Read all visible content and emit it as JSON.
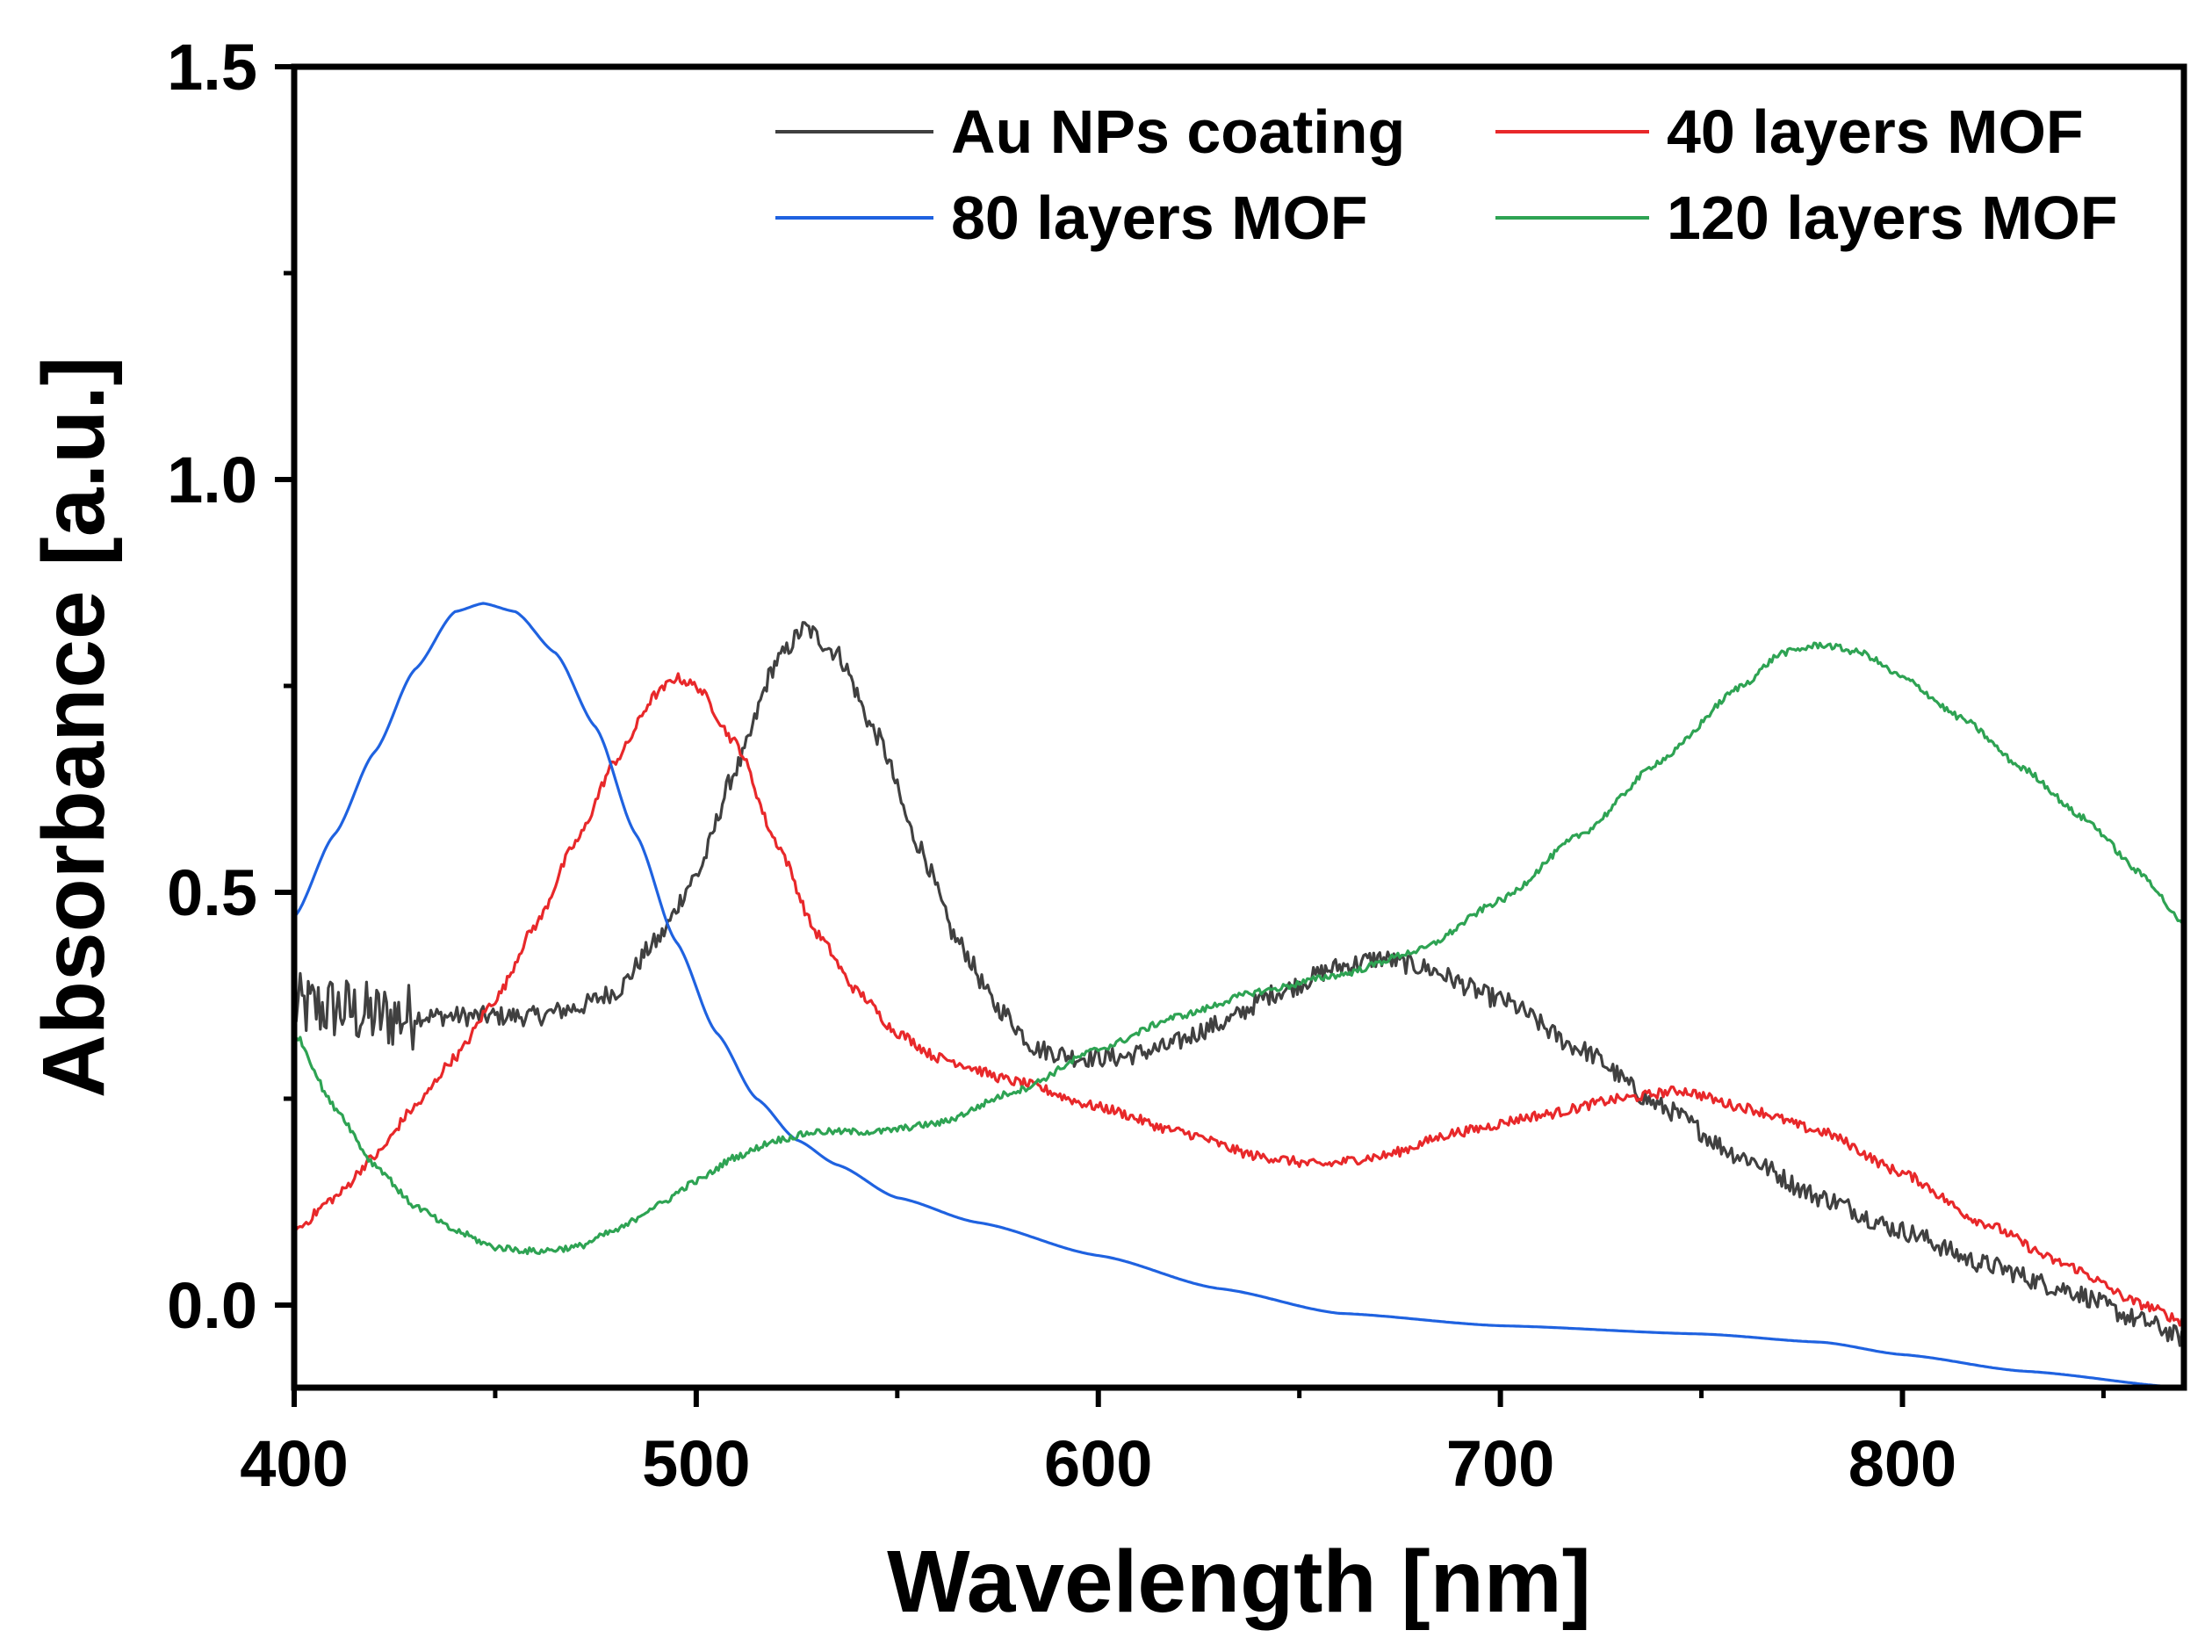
{
  "chart_data": {
    "type": "line",
    "title": "",
    "xlabel": "Wavelength [nm]",
    "ylabel": "Absorbance [a.u.]",
    "xlim": [
      400,
      870
    ],
    "ylim": [
      -0.1,
      1.5
    ],
    "x_ticks": [
      400,
      500,
      600,
      700,
      800
    ],
    "x_tick_labels": [
      "400",
      "500",
      "600",
      "700",
      "800"
    ],
    "y_ticks": [
      0.0,
      0.5,
      1.0,
      1.5
    ],
    "y_tick_labels": [
      "0.0",
      "0.5",
      "1.0",
      "1.5"
    ],
    "grid": false,
    "legend_position": "top-right",
    "series": [
      {
        "name": "Au NPs coating",
        "color": "#404040",
        "noise": 0.012,
        "points": [
          [
            400,
            0.36
          ],
          [
            410,
            0.36
          ],
          [
            420,
            0.35
          ],
          [
            430,
            0.35
          ],
          [
            440,
            0.35
          ],
          [
            450,
            0.35
          ],
          [
            460,
            0.35
          ],
          [
            470,
            0.36
          ],
          [
            480,
            0.38
          ],
          [
            490,
            0.44
          ],
          [
            500,
            0.52
          ],
          [
            510,
            0.65
          ],
          [
            520,
            0.78
          ],
          [
            527,
            0.82
          ],
          [
            535,
            0.79
          ],
          [
            545,
            0.69
          ],
          [
            555,
            0.56
          ],
          [
            565,
            0.44
          ],
          [
            575,
            0.36
          ],
          [
            585,
            0.31
          ],
          [
            595,
            0.3
          ],
          [
            605,
            0.3
          ],
          [
            615,
            0.31
          ],
          [
            630,
            0.34
          ],
          [
            645,
            0.38
          ],
          [
            660,
            0.41
          ],
          [
            670,
            0.42
          ],
          [
            680,
            0.41
          ],
          [
            700,
            0.37
          ],
          [
            720,
            0.31
          ],
          [
            740,
            0.24
          ],
          [
            760,
            0.18
          ],
          [
            780,
            0.13
          ],
          [
            800,
            0.09
          ],
          [
            820,
            0.05
          ],
          [
            840,
            0.02
          ],
          [
            860,
            -0.02
          ],
          [
            870,
            -0.04
          ]
        ]
      },
      {
        "name": "40 layers MOF",
        "color": "#e8282a",
        "noise": 0.006,
        "points": [
          [
            400,
            0.09
          ],
          [
            410,
            0.13
          ],
          [
            420,
            0.18
          ],
          [
            430,
            0.24
          ],
          [
            440,
            0.3
          ],
          [
            450,
            0.37
          ],
          [
            460,
            0.46
          ],
          [
            470,
            0.56
          ],
          [
            480,
            0.66
          ],
          [
            490,
            0.74
          ],
          [
            495,
            0.76
          ],
          [
            500,
            0.75
          ],
          [
            510,
            0.68
          ],
          [
            520,
            0.56
          ],
          [
            530,
            0.45
          ],
          [
            540,
            0.38
          ],
          [
            550,
            0.33
          ],
          [
            560,
            0.3
          ],
          [
            580,
            0.27
          ],
          [
            600,
            0.24
          ],
          [
            620,
            0.21
          ],
          [
            640,
            0.18
          ],
          [
            655,
            0.17
          ],
          [
            670,
            0.18
          ],
          [
            690,
            0.21
          ],
          [
            710,
            0.23
          ],
          [
            730,
            0.25
          ],
          [
            745,
            0.26
          ],
          [
            760,
            0.24
          ],
          [
            780,
            0.21
          ],
          [
            800,
            0.16
          ],
          [
            820,
            0.1
          ],
          [
            840,
            0.05
          ],
          [
            860,
            0.0
          ],
          [
            870,
            -0.02
          ]
        ]
      },
      {
        "name": "80 layers MOF",
        "color": "#1f62e0",
        "noise": 0.0,
        "points": [
          [
            400,
            0.47
          ],
          [
            410,
            0.57
          ],
          [
            420,
            0.67
          ],
          [
            430,
            0.77
          ],
          [
            440,
            0.84
          ],
          [
            447,
            0.85
          ],
          [
            455,
            0.84
          ],
          [
            465,
            0.79
          ],
          [
            475,
            0.7
          ],
          [
            485,
            0.57
          ],
          [
            495,
            0.44
          ],
          [
            505,
            0.33
          ],
          [
            515,
            0.25
          ],
          [
            525,
            0.2
          ],
          [
            535,
            0.17
          ],
          [
            550,
            0.13
          ],
          [
            570,
            0.1
          ],
          [
            600,
            0.06
          ],
          [
            630,
            0.02
          ],
          [
            660,
            -0.01
          ],
          [
            700,
            -0.025
          ],
          [
            750,
            -0.035
          ],
          [
            780,
            -0.045
          ],
          [
            800,
            -0.06
          ],
          [
            830,
            -0.08
          ],
          [
            870,
            -0.1
          ]
        ]
      },
      {
        "name": "120 layers MOF",
        "color": "#2ea353",
        "noise": 0.004,
        "points": [
          [
            400,
            0.33
          ],
          [
            410,
            0.24
          ],
          [
            420,
            0.17
          ],
          [
            430,
            0.12
          ],
          [
            440,
            0.09
          ],
          [
            450,
            0.07
          ],
          [
            460,
            0.065
          ],
          [
            470,
            0.07
          ],
          [
            480,
            0.09
          ],
          [
            490,
            0.12
          ],
          [
            500,
            0.15
          ],
          [
            510,
            0.18
          ],
          [
            520,
            0.2
          ],
          [
            530,
            0.21
          ],
          [
            545,
            0.21
          ],
          [
            560,
            0.22
          ],
          [
            580,
            0.26
          ],
          [
            600,
            0.31
          ],
          [
            620,
            0.35
          ],
          [
            640,
            0.38
          ],
          [
            660,
            0.4
          ],
          [
            680,
            0.43
          ],
          [
            700,
            0.49
          ],
          [
            720,
            0.57
          ],
          [
            740,
            0.66
          ],
          [
            760,
            0.75
          ],
          [
            770,
            0.79
          ],
          [
            780,
            0.8
          ],
          [
            790,
            0.79
          ],
          [
            800,
            0.76
          ],
          [
            815,
            0.71
          ],
          [
            830,
            0.65
          ],
          [
            845,
            0.59
          ],
          [
            860,
            0.52
          ],
          [
            870,
            0.46
          ]
        ]
      }
    ]
  }
}
